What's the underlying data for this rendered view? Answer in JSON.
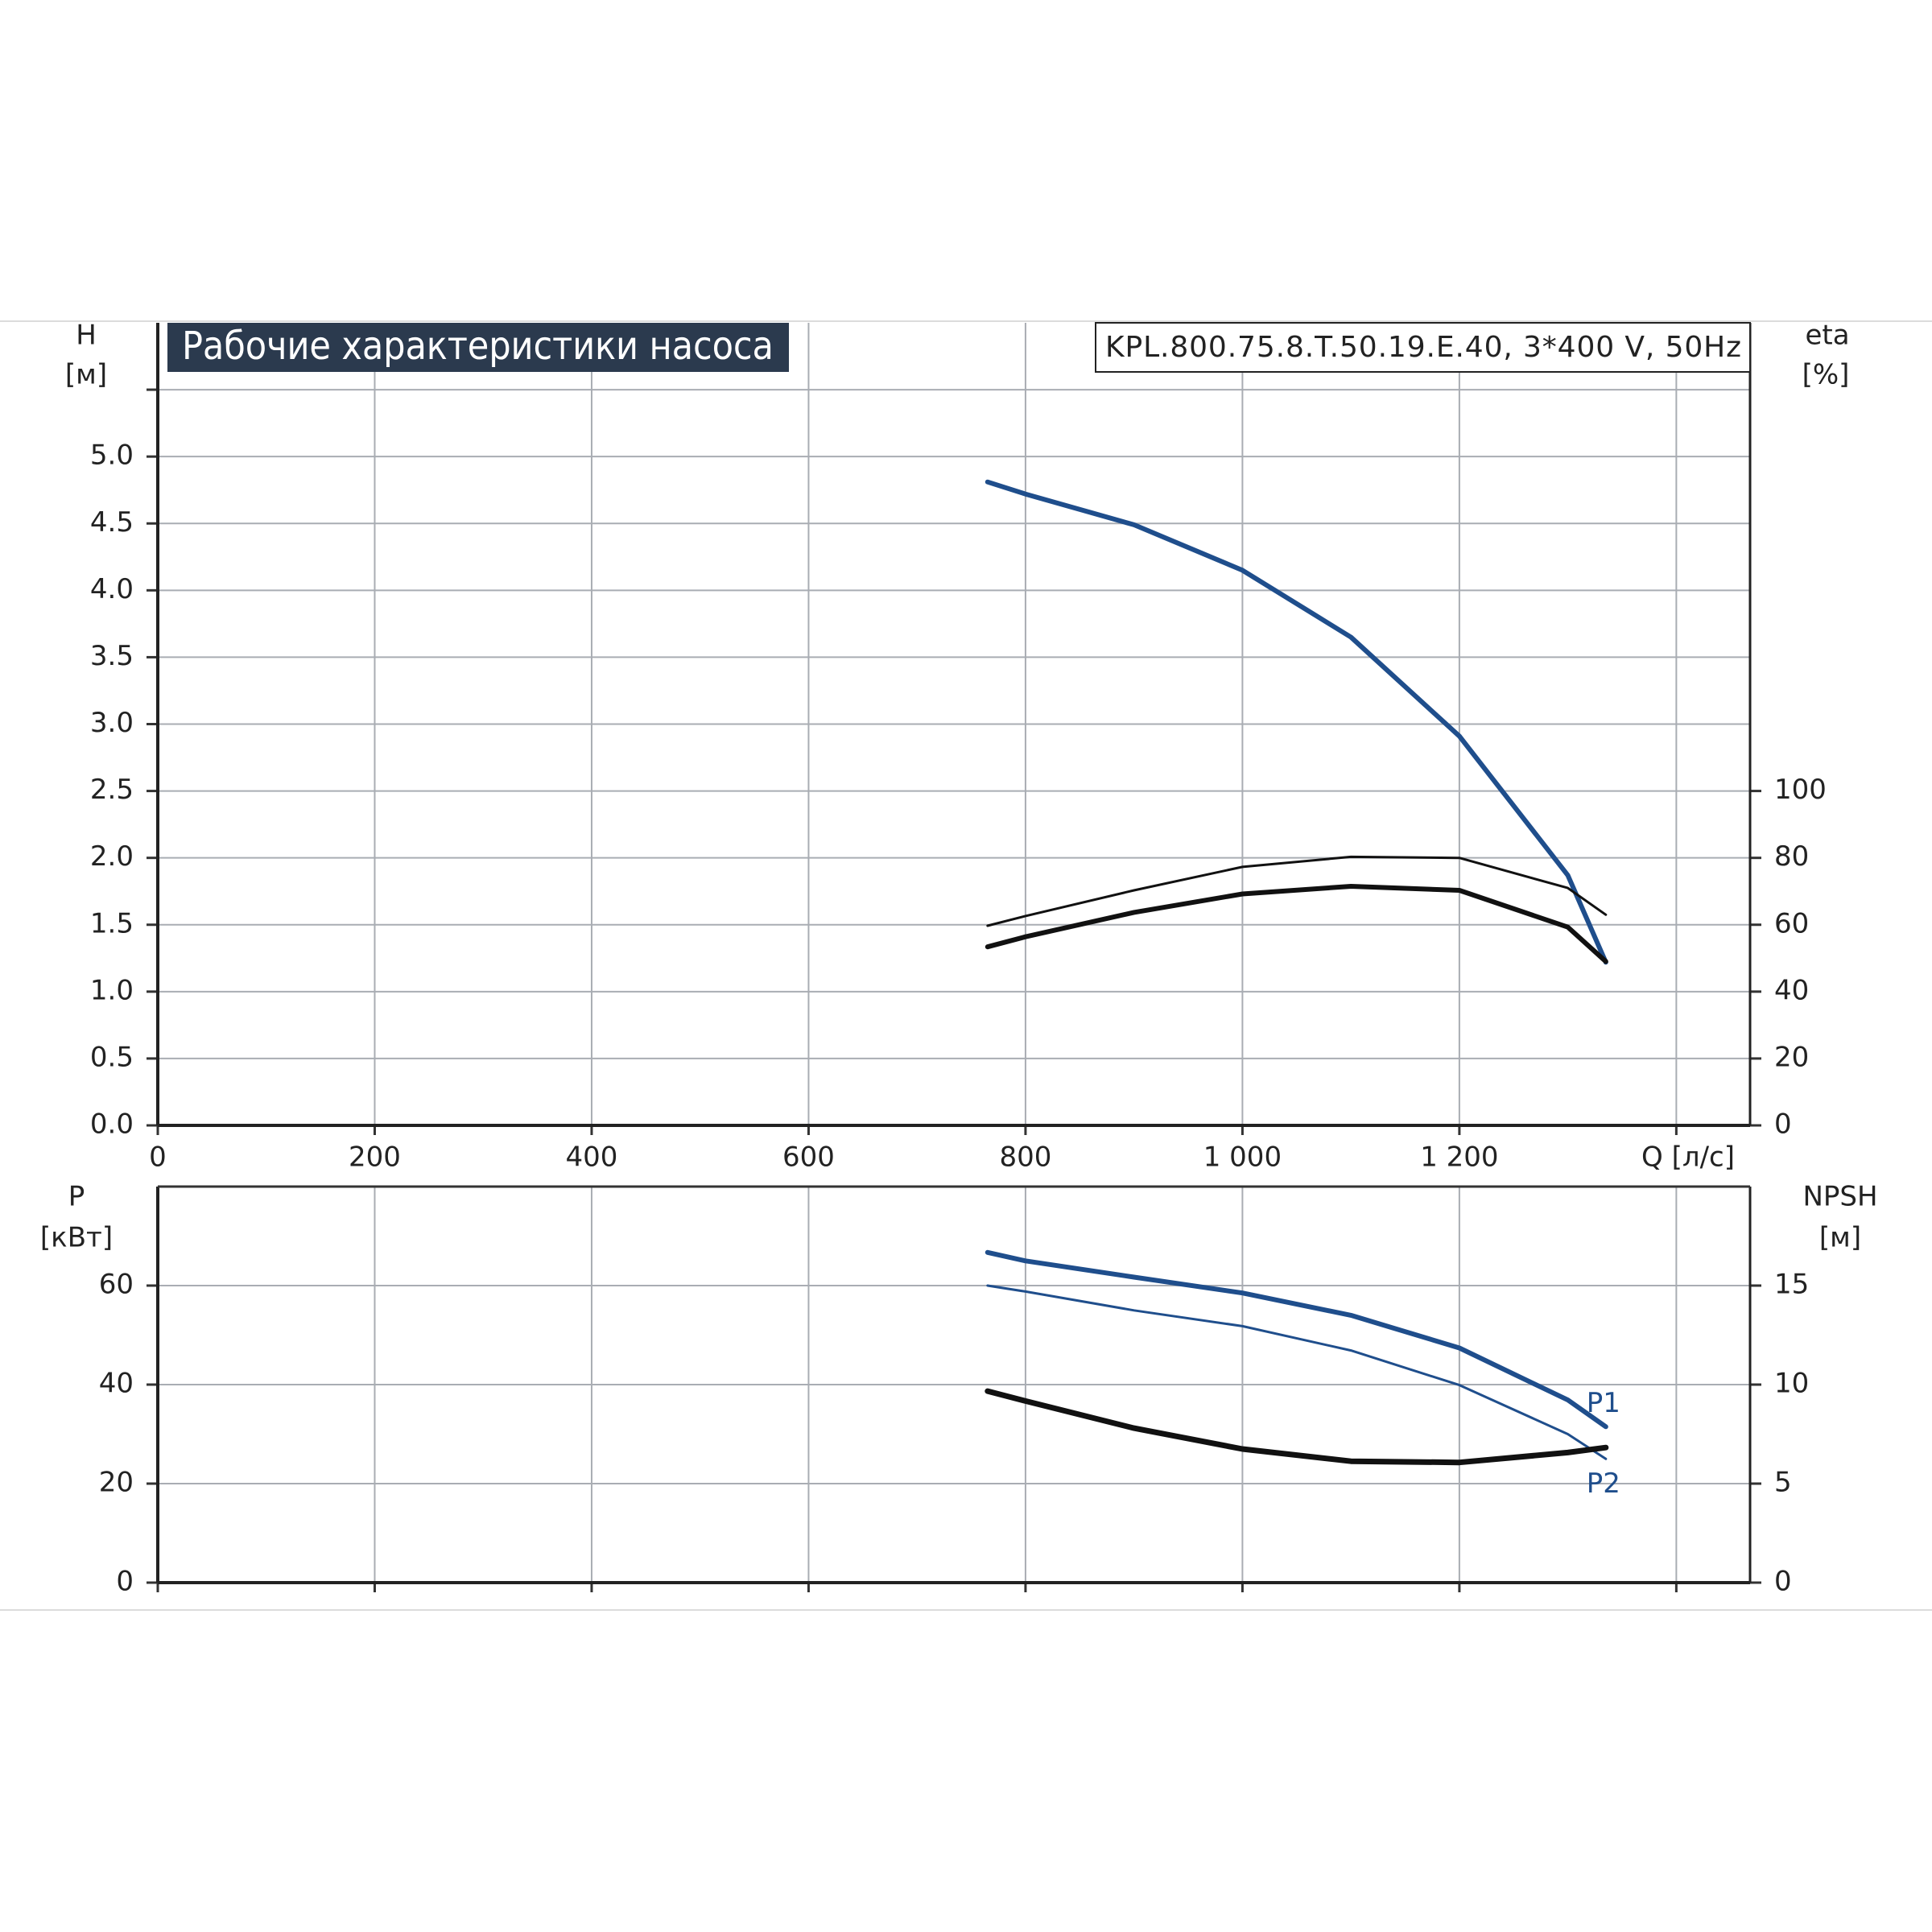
{
  "chart_data": [
    {
      "type": "line",
      "title": "Рабочие характеристики насоса",
      "subtitle": "KPL.800.75.8.T.50.19.E.40, 3*400 V, 50Hz",
      "ylabel": "H",
      "yunit": "[м]",
      "y2label": "eta",
      "y2unit": "[%]",
      "xlabel": "Q [л/с]",
      "x": [
        765,
        800,
        900,
        1000,
        1100,
        1200,
        1300,
        1335
      ],
      "xlim": [
        0,
        1468
      ],
      "xticks": [
        0,
        200,
        400,
        600,
        800,
        {
          "value": 1000,
          "label": "1 000"
        },
        {
          "value": 1200,
          "label": "1 200"
        },
        {
          "value": 1400,
          "label": null
        }
      ],
      "ylim": [
        0,
        6
      ],
      "yticks": [
        {
          "value": 0,
          "label": "0.0"
        },
        {
          "value": 0.5,
          "label": "0.5"
        },
        {
          "value": 1,
          "label": "1.0"
        },
        {
          "value": 1.5,
          "label": "1.5"
        },
        {
          "value": 2,
          "label": "2.0"
        },
        {
          "value": 2.5,
          "label": "2.5"
        },
        {
          "value": 3,
          "label": "3.0"
        },
        {
          "value": 3.5,
          "label": "3.5"
        },
        {
          "value": 4,
          "label": "4.0"
        },
        {
          "value": 4.5,
          "label": "4.5"
        },
        {
          "value": 5,
          "label": "5.0"
        },
        {
          "value": 5.5,
          "label": null
        }
      ],
      "y2lim": [
        0,
        240
      ],
      "y2ticks": [
        0,
        20,
        40,
        60,
        80,
        100
      ],
      "grid": true,
      "series": [
        {
          "color": "#1f4e8c",
          "values": [
            4.81,
            4.72,
            4.49,
            4.15,
            3.65,
            2.91,
            1.87,
            1.22
          ]
        },
        {
          "color": "#111111",
          "axis": "y2",
          "values": [
            59.7,
            62.6,
            70.3,
            77.3,
            80.3,
            80,
            71,
            63
          ]
        },
        {
          "color": "#111111",
          "axis": "y2",
          "values": [
            53.4,
            56.4,
            63.7,
            69.2,
            71.5,
            70.3,
            59.3,
            49
          ]
        }
      ]
    },
    {
      "type": "line",
      "ylabel": "P",
      "yunit": "[кВт]",
      "y2label": "NPSH",
      "y2unit": "[м]",
      "x": [
        765,
        800,
        900,
        1000,
        1100,
        1200,
        1300,
        1335
      ],
      "ylim": [
        0,
        80
      ],
      "yticks": [
        0,
        20,
        40,
        60
      ],
      "y2lim": [
        0,
        20
      ],
      "y2ticks": [
        0,
        5,
        10,
        15
      ],
      "grid": true,
      "series": [
        {
          "name": "P1",
          "color": "#1f4e8c",
          "values": [
            66.7,
            65,
            61.7,
            58.5,
            54,
            47.4,
            36.9,
            31.5
          ]
        },
        {
          "name": "P2",
          "color": "#1f4e8c",
          "values": [
            60,
            58.8,
            55,
            51.8,
            46.9,
            39.9,
            30,
            25
          ]
        },
        {
          "color": "#111111",
          "axis": "y2",
          "values": [
            9.67,
            9.17,
            7.8,
            6.75,
            6.13,
            6.07,
            6.57,
            6.82
          ]
        }
      ]
    }
  ]
}
